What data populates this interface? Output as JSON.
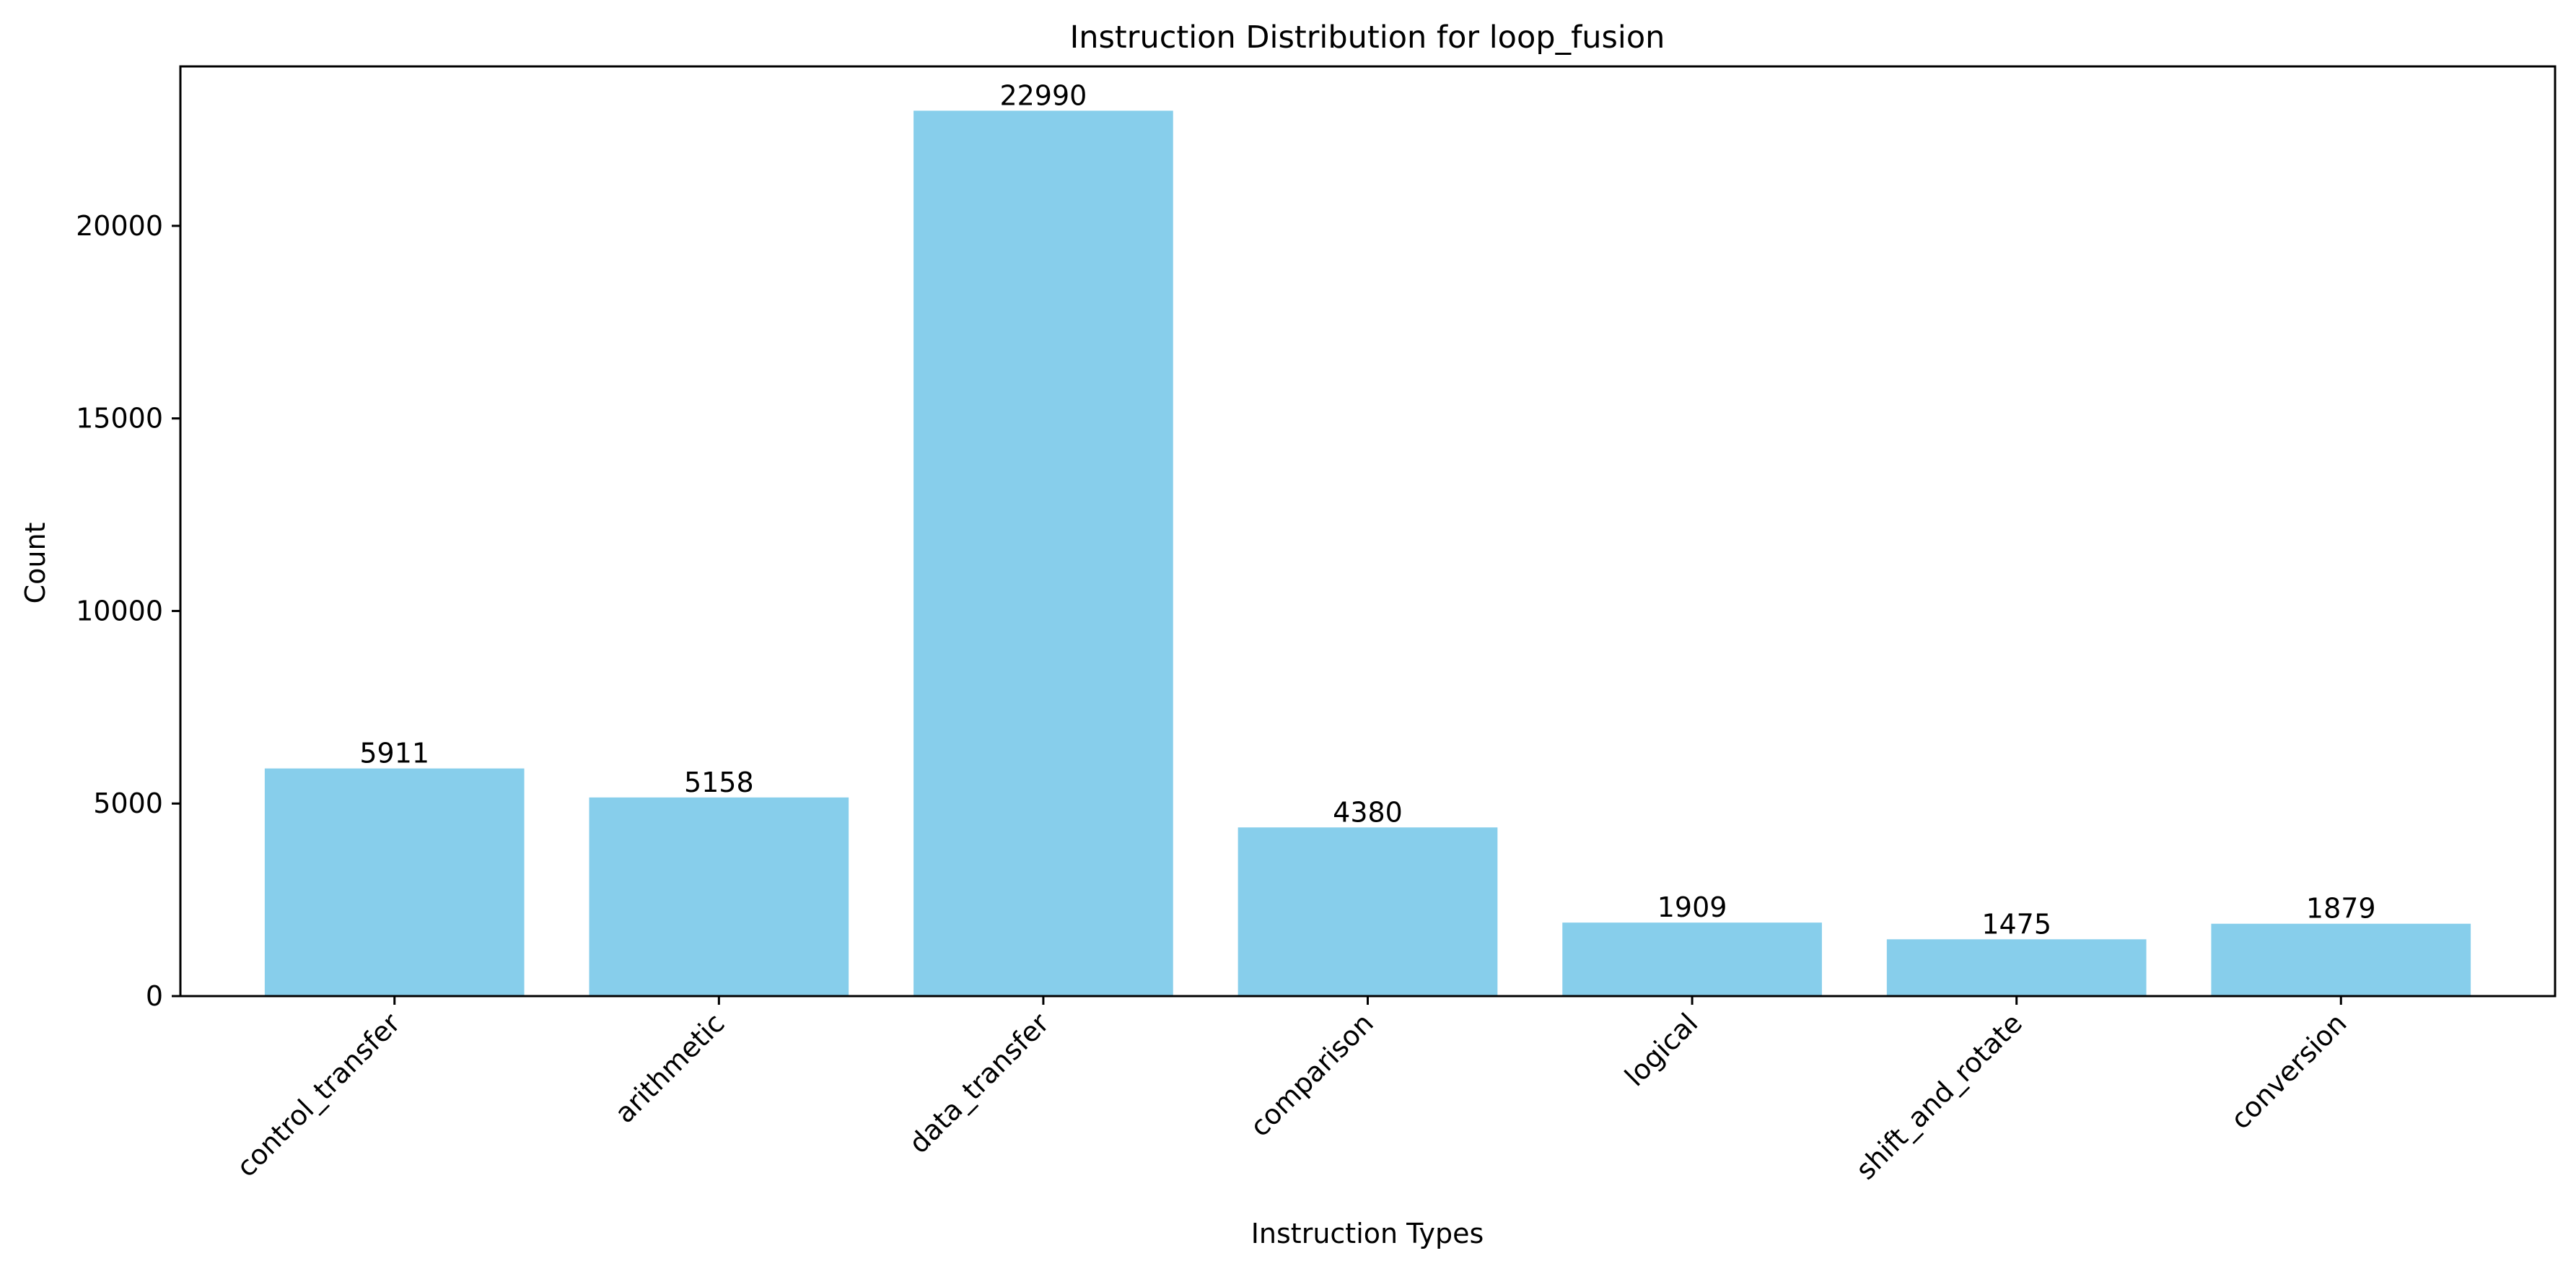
{
  "chart_data": {
    "type": "bar",
    "title": "Instruction Distribution for loop_fusion",
    "xlabel": "Instruction Types",
    "ylabel": "Count",
    "categories": [
      "control_transfer",
      "arithmetic",
      "data_transfer",
      "comparison",
      "logical",
      "shift_and_rotate",
      "conversion"
    ],
    "values": [
      5911,
      5158,
      22990,
      4380,
      1909,
      1475,
      1879
    ],
    "ylim": [
      0,
      24140
    ],
    "yticks": [
      0,
      5000,
      10000,
      15000,
      20000
    ],
    "grid": false,
    "bar_color": "#87CEEB"
  }
}
